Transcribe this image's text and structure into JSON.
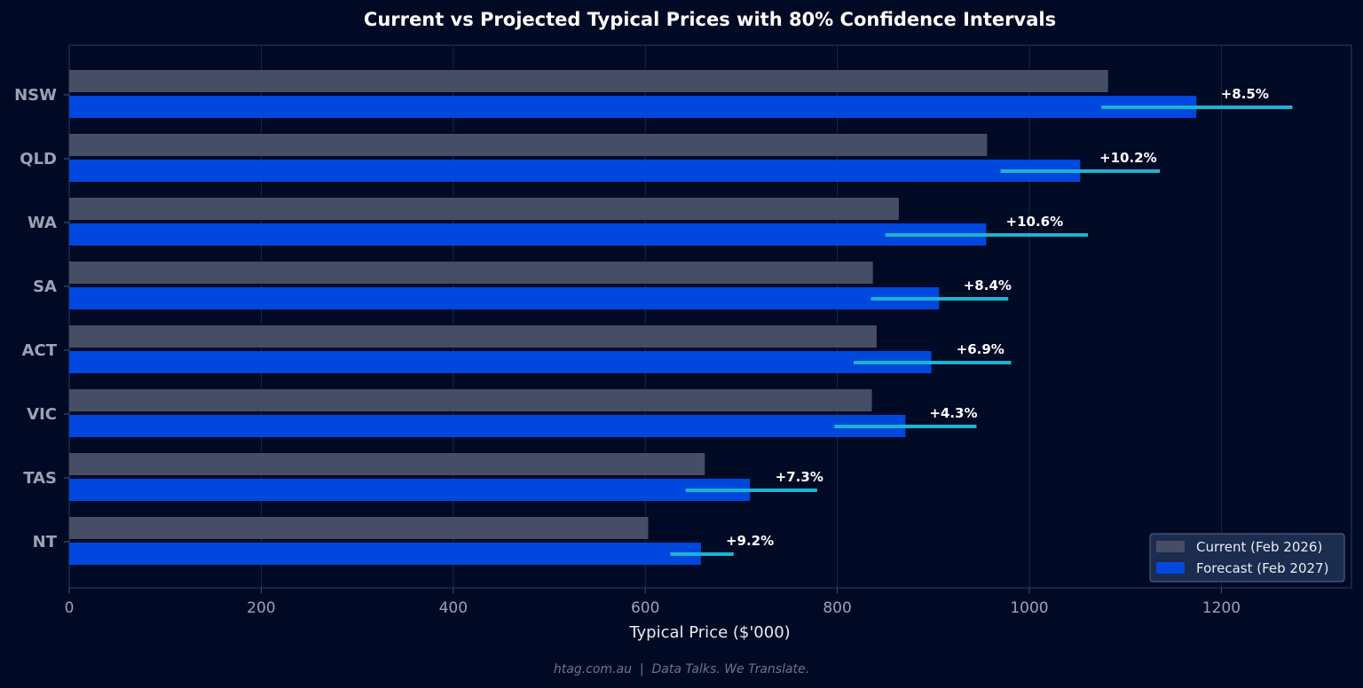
{
  "chart_data": {
    "type": "bar",
    "orientation": "horizontal",
    "title": "Current vs Projected Typical Prices with 80% Confidence Intervals",
    "xlabel": "Typical Price ($'000)",
    "ylabel": "",
    "xlim": [
      0,
      1335
    ],
    "xticks": [
      0,
      200,
      400,
      600,
      800,
      1000,
      1200
    ],
    "grid": "vertical",
    "legend_position": "bottom-right",
    "categories": [
      "NSW",
      "QLD",
      "WA",
      "SA",
      "ACT",
      "VIC",
      "TAS",
      "NT"
    ],
    "series": [
      {
        "name": "Current (Feb 2026)",
        "color": "#464e65",
        "values": [
          1082,
          956,
          864,
          837,
          841,
          836,
          662,
          603
        ]
      },
      {
        "name": "Forecast (Feb 2027)",
        "color": "#0048dd",
        "values": [
          1174,
          1053,
          955,
          906,
          898,
          871,
          709,
          658
        ]
      }
    ],
    "confidence_intervals": {
      "label": "80% Confidence Intervals",
      "color": "#1ab4d4",
      "ranges": [
        [
          1075,
          1274
        ],
        [
          970,
          1136
        ],
        [
          850,
          1061
        ],
        [
          835,
          978
        ],
        [
          817,
          981
        ],
        [
          797,
          945
        ],
        [
          642,
          779
        ],
        [
          626,
          692
        ]
      ]
    },
    "change_labels": [
      "+8.5%",
      "+10.2%",
      "+10.6%",
      "+8.4%",
      "+6.9%",
      "+4.3%",
      "+7.3%",
      "+9.2%"
    ]
  },
  "footer": "htag.com.au  |  Data Talks. We Translate."
}
